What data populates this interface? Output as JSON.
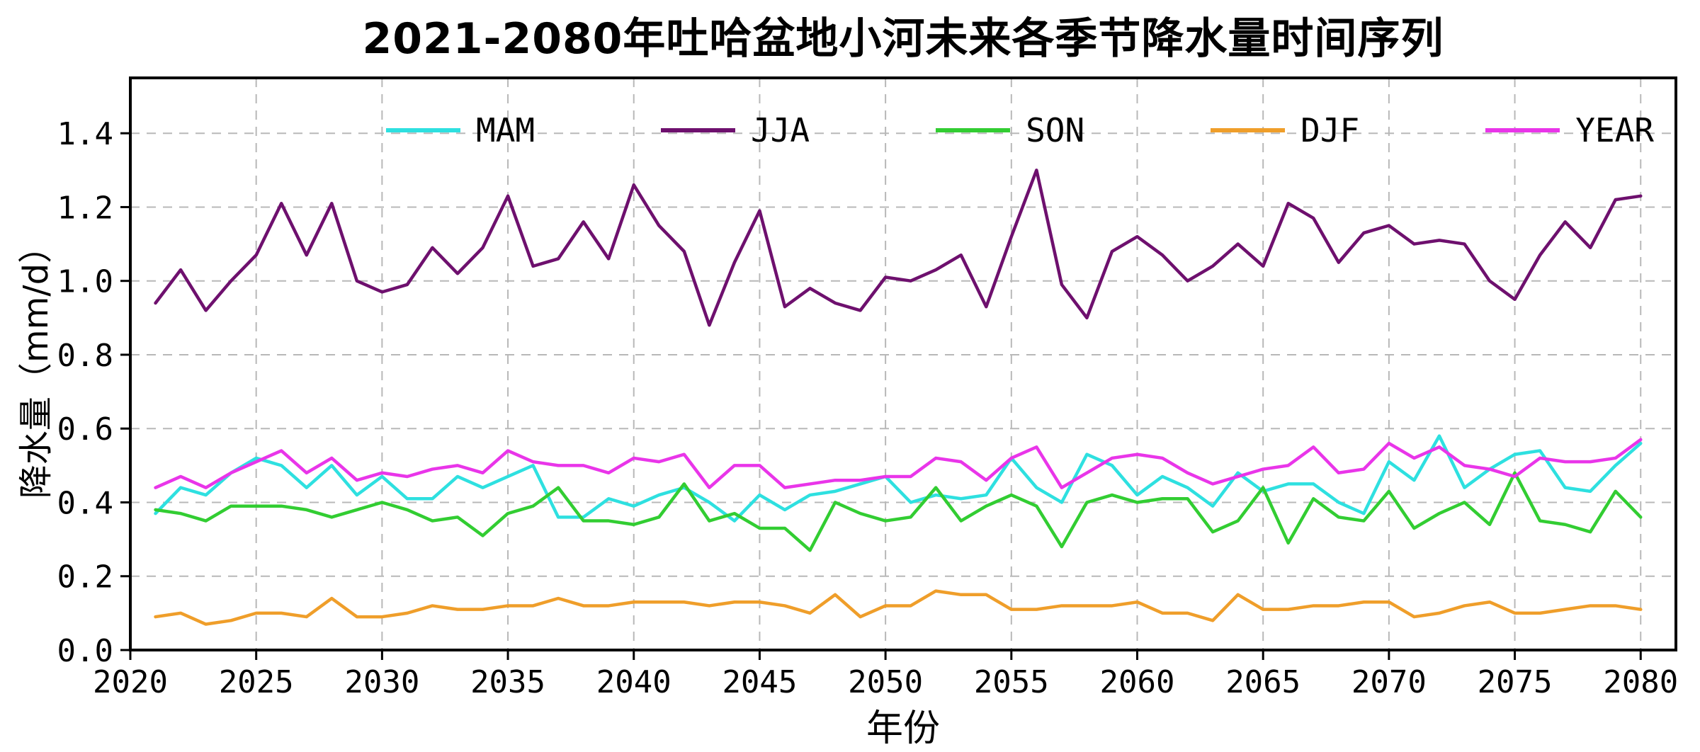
{
  "chart_data": {
    "type": "line",
    "title": "2021-2080年吐哈盆地小河未来各季节降水量时间序列",
    "xlabel": "年份",
    "ylabel": "降水量（mm/d）",
    "grid": true,
    "grid_style": "dashed",
    "grid_color": "#b8b8b8",
    "legend_position": "top-inside-horizontal",
    "xlim": [
      2020,
      2081.4
    ],
    "ylim": [
      0,
      1.55
    ],
    "xticks": [
      2020,
      2025,
      2030,
      2035,
      2040,
      2045,
      2050,
      2055,
      2060,
      2065,
      2070,
      2075,
      2080
    ],
    "yticks": [
      0.0,
      0.2,
      0.4,
      0.6,
      0.8,
      1.0,
      1.2,
      1.4
    ],
    "years": [
      2021,
      2022,
      2023,
      2024,
      2025,
      2026,
      2027,
      2028,
      2029,
      2030,
      2031,
      2032,
      2033,
      2034,
      2035,
      2036,
      2037,
      2038,
      2039,
      2040,
      2041,
      2042,
      2043,
      2044,
      2045,
      2046,
      2047,
      2048,
      2049,
      2050,
      2051,
      2052,
      2053,
      2054,
      2055,
      2056,
      2057,
      2058,
      2059,
      2060,
      2061,
      2062,
      2063,
      2064,
      2065,
      2066,
      2067,
      2068,
      2069,
      2070,
      2071,
      2072,
      2073,
      2074,
      2075,
      2076,
      2077,
      2078,
      2079,
      2080
    ],
    "series": [
      {
        "name": "MAM",
        "color": "#2ee0e0",
        "values": [
          0.37,
          0.44,
          0.42,
          0.48,
          0.52,
          0.5,
          0.44,
          0.5,
          0.42,
          0.47,
          0.41,
          0.41,
          0.47,
          0.44,
          0.47,
          0.5,
          0.36,
          0.36,
          0.41,
          0.39,
          0.42,
          0.44,
          0.4,
          0.35,
          0.42,
          0.38,
          0.42,
          0.43,
          0.45,
          0.47,
          0.4,
          0.42,
          0.41,
          0.42,
          0.52,
          0.44,
          0.4,
          0.53,
          0.5,
          0.42,
          0.47,
          0.44,
          0.39,
          0.48,
          0.43,
          0.45,
          0.45,
          0.4,
          0.37,
          0.51,
          0.46,
          0.58,
          0.44,
          0.49,
          0.53,
          0.54,
          0.44,
          0.43,
          0.5,
          0.56
        ]
      },
      {
        "name": "JJA",
        "color": "#6e106e",
        "values": [
          0.94,
          1.03,
          0.92,
          1.0,
          1.07,
          1.21,
          1.07,
          1.21,
          1.0,
          0.97,
          0.99,
          1.09,
          1.02,
          1.09,
          1.23,
          1.04,
          1.06,
          1.16,
          1.06,
          1.26,
          1.15,
          1.08,
          0.88,
          1.05,
          1.19,
          0.93,
          0.98,
          0.94,
          0.92,
          1.01,
          1.0,
          1.03,
          1.07,
          0.93,
          1.12,
          1.3,
          0.99,
          0.9,
          1.08,
          1.12,
          1.07,
          1.0,
          1.04,
          1.1,
          1.04,
          1.21,
          1.17,
          1.05,
          1.13,
          1.15,
          1.1,
          1.11,
          1.1,
          1.0,
          0.95,
          1.07,
          1.16,
          1.09,
          1.22,
          1.23
        ]
      },
      {
        "name": "SON",
        "color": "#32cd32",
        "values": [
          0.38,
          0.37,
          0.35,
          0.39,
          0.39,
          0.39,
          0.38,
          0.36,
          0.38,
          0.4,
          0.38,
          0.35,
          0.36,
          0.31,
          0.37,
          0.39,
          0.44,
          0.35,
          0.35,
          0.34,
          0.36,
          0.45,
          0.35,
          0.37,
          0.33,
          0.33,
          0.27,
          0.4,
          0.37,
          0.35,
          0.36,
          0.44,
          0.35,
          0.39,
          0.42,
          0.39,
          0.28,
          0.4,
          0.42,
          0.4,
          0.41,
          0.41,
          0.32,
          0.35,
          0.44,
          0.29,
          0.41,
          0.36,
          0.35,
          0.43,
          0.33,
          0.37,
          0.4,
          0.34,
          0.48,
          0.35,
          0.34,
          0.32,
          0.43,
          0.36
        ]
      },
      {
        "name": "DJF",
        "color": "#ef9e2a",
        "values": [
          0.09,
          0.1,
          0.07,
          0.08,
          0.1,
          0.1,
          0.09,
          0.14,
          0.09,
          0.09,
          0.1,
          0.12,
          0.11,
          0.11,
          0.12,
          0.12,
          0.14,
          0.12,
          0.12,
          0.13,
          0.13,
          0.13,
          0.12,
          0.13,
          0.13,
          0.12,
          0.1,
          0.15,
          0.09,
          0.12,
          0.12,
          0.16,
          0.15,
          0.15,
          0.11,
          0.11,
          0.12,
          0.12,
          0.12,
          0.13,
          0.1,
          0.1,
          0.08,
          0.15,
          0.11,
          0.11,
          0.12,
          0.12,
          0.13,
          0.13,
          0.09,
          0.1,
          0.12,
          0.13,
          0.1,
          0.1,
          0.11,
          0.12,
          0.12,
          0.11
        ]
      },
      {
        "name": "YEAR",
        "color": "#e935e9",
        "values": [
          0.44,
          0.47,
          0.44,
          0.48,
          0.51,
          0.54,
          0.48,
          0.52,
          0.46,
          0.48,
          0.47,
          0.49,
          0.5,
          0.48,
          0.54,
          0.51,
          0.5,
          0.5,
          0.48,
          0.52,
          0.51,
          0.53,
          0.44,
          0.5,
          0.5,
          0.44,
          0.45,
          0.46,
          0.46,
          0.47,
          0.47,
          0.52,
          0.51,
          0.46,
          0.52,
          0.55,
          0.44,
          0.48,
          0.52,
          0.53,
          0.52,
          0.48,
          0.45,
          0.47,
          0.49,
          0.5,
          0.55,
          0.48,
          0.49,
          0.56,
          0.52,
          0.55,
          0.5,
          0.49,
          0.47,
          0.52,
          0.51,
          0.51,
          0.52,
          0.57
        ]
      }
    ]
  }
}
